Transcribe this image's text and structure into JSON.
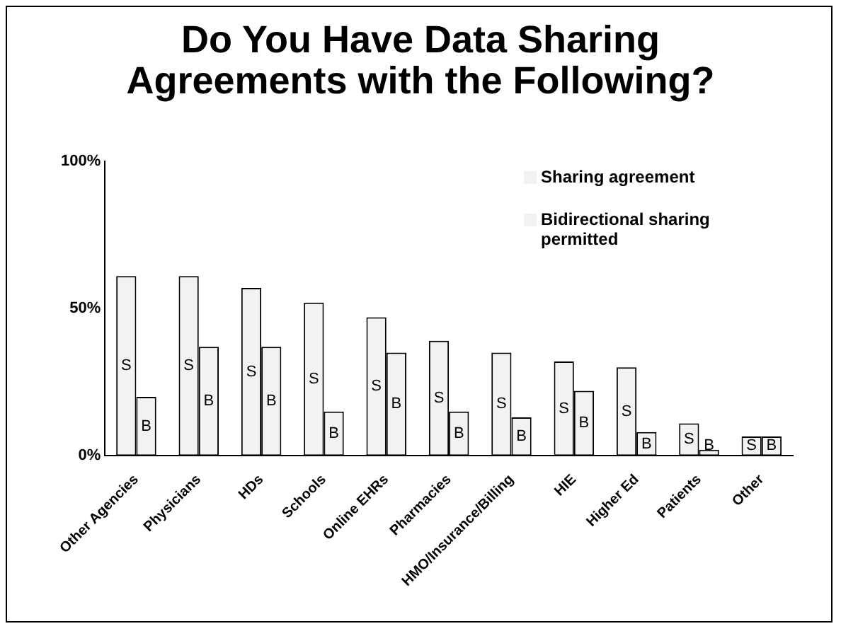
{
  "chart_data": {
    "type": "bar",
    "title": "Do You Have Data Sharing Agreements with the Following?",
    "categories": [
      "Other Agencies",
      "Physicians",
      "HDs",
      "Schools",
      "Online EHRs",
      "Pharmacies",
      "HMO/Insurance/Billing",
      "HIE",
      "Higher Ed",
      "Patients",
      "Other"
    ],
    "series": [
      {
        "name": "Sharing agreement",
        "color": "#f2f2f2",
        "values": [
          61,
          61,
          57,
          52,
          47,
          39,
          35,
          32,
          30,
          11,
          6.5
        ],
        "value_labels": [
          "S",
          "S",
          "S",
          "S",
          "S",
          "S",
          "S",
          "S",
          "S",
          "S",
          "S"
        ]
      },
      {
        "name": "Bidirectional sharing permitted",
        "color": "#f2f2f2",
        "values": [
          20,
          37,
          37,
          15,
          35,
          15,
          13,
          22,
          8,
          2,
          6.5
        ],
        "value_labels": [
          "B",
          "B",
          "B",
          "B",
          "B",
          "B",
          "B",
          "B",
          "B",
          "B",
          "B"
        ]
      }
    ],
    "ylim": [
      0,
      100
    ],
    "yticks": [
      {
        "value": 0,
        "label": "0%"
      },
      {
        "value": 50,
        "label": "50%"
      },
      {
        "value": 100,
        "label": "100%"
      }
    ],
    "grid": false,
    "legend": "top right"
  }
}
